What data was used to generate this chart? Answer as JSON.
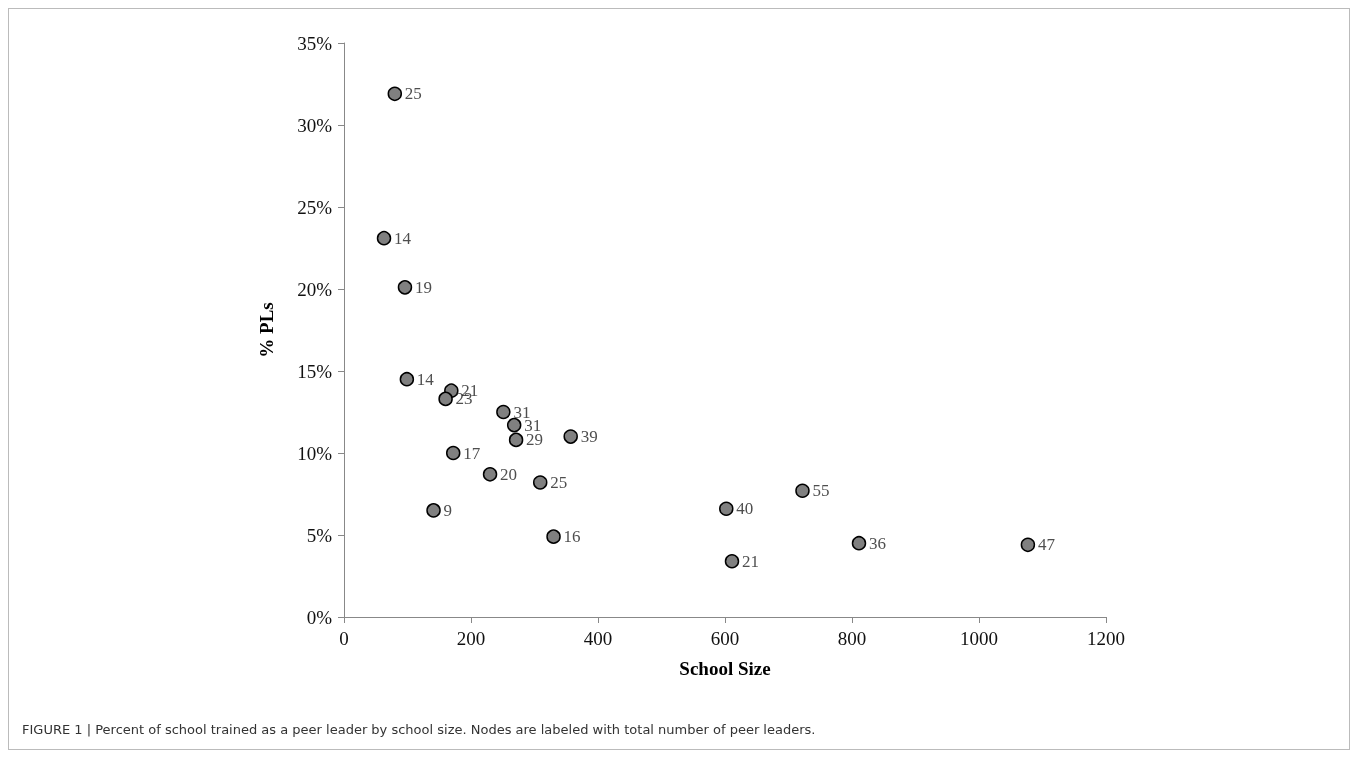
{
  "chart_data": {
    "type": "scatter",
    "xlabel": "School Size",
    "ylabel": "% PLs",
    "x": [
      80,
      63,
      96,
      99,
      169,
      160,
      251,
      268,
      271,
      357,
      172,
      230,
      309,
      141,
      330,
      602,
      722,
      811,
      1077,
      611
    ],
    "values": [
      31.9,
      23.1,
      20.1,
      14.5,
      13.8,
      13.3,
      12.5,
      11.7,
      10.8,
      11.0,
      10.0,
      8.7,
      8.2,
      6.5,
      4.9,
      6.6,
      7.7,
      4.5,
      4.4,
      3.4
    ],
    "color": "#808080",
    "marker": "circle",
    "xlim": [
      0,
      1200
    ],
    "xticks": [
      0,
      200,
      400,
      600,
      800,
      1000,
      1200
    ],
    "ylim": [
      0,
      35
    ],
    "yticks": [
      {
        "value": 0,
        "label": "0%"
      },
      {
        "value": 5,
        "label": "5%"
      },
      {
        "value": 10,
        "label": "10%"
      },
      {
        "value": 15,
        "label": "15%"
      },
      {
        "value": 20,
        "label": "20%"
      },
      {
        "value": 25,
        "label": "25%"
      },
      {
        "value": 30,
        "label": "30%"
      },
      {
        "value": 35,
        "label": "35%"
      }
    ],
    "grid": false,
    "annotations": [
      {
        "text": "25",
        "x": 80,
        "y": 31.9
      },
      {
        "text": "14",
        "x": 63,
        "y": 23.1
      },
      {
        "text": "19",
        "x": 96,
        "y": 20.1
      },
      {
        "text": "14",
        "x": 99,
        "y": 14.5
      },
      {
        "text": "21",
        "x": 169,
        "y": 13.8
      },
      {
        "text": "23",
        "x": 160,
        "y": 13.3
      },
      {
        "text": "31",
        "x": 251,
        "y": 12.5
      },
      {
        "text": "31",
        "x": 268,
        "y": 11.7
      },
      {
        "text": "29",
        "x": 271,
        "y": 10.8
      },
      {
        "text": "39",
        "x": 357,
        "y": 11.0
      },
      {
        "text": "17",
        "x": 172,
        "y": 10.0
      },
      {
        "text": "20",
        "x": 230,
        "y": 8.7
      },
      {
        "text": "25",
        "x": 309,
        "y": 8.2
      },
      {
        "text": "9",
        "x": 141,
        "y": 6.5
      },
      {
        "text": "16",
        "x": 330,
        "y": 4.9
      },
      {
        "text": "40",
        "x": 602,
        "y": 6.6
      },
      {
        "text": "55",
        "x": 722,
        "y": 7.7
      },
      {
        "text": "36",
        "x": 811,
        "y": 4.5
      },
      {
        "text": "47",
        "x": 1077,
        "y": 4.4
      },
      {
        "text": "21",
        "x": 611,
        "y": 3.4
      },
      "FIGURE 1 | Percent of school trained as a peer leader by school size. Nodes are labeled with total number of peer leaders."
    ]
  }
}
